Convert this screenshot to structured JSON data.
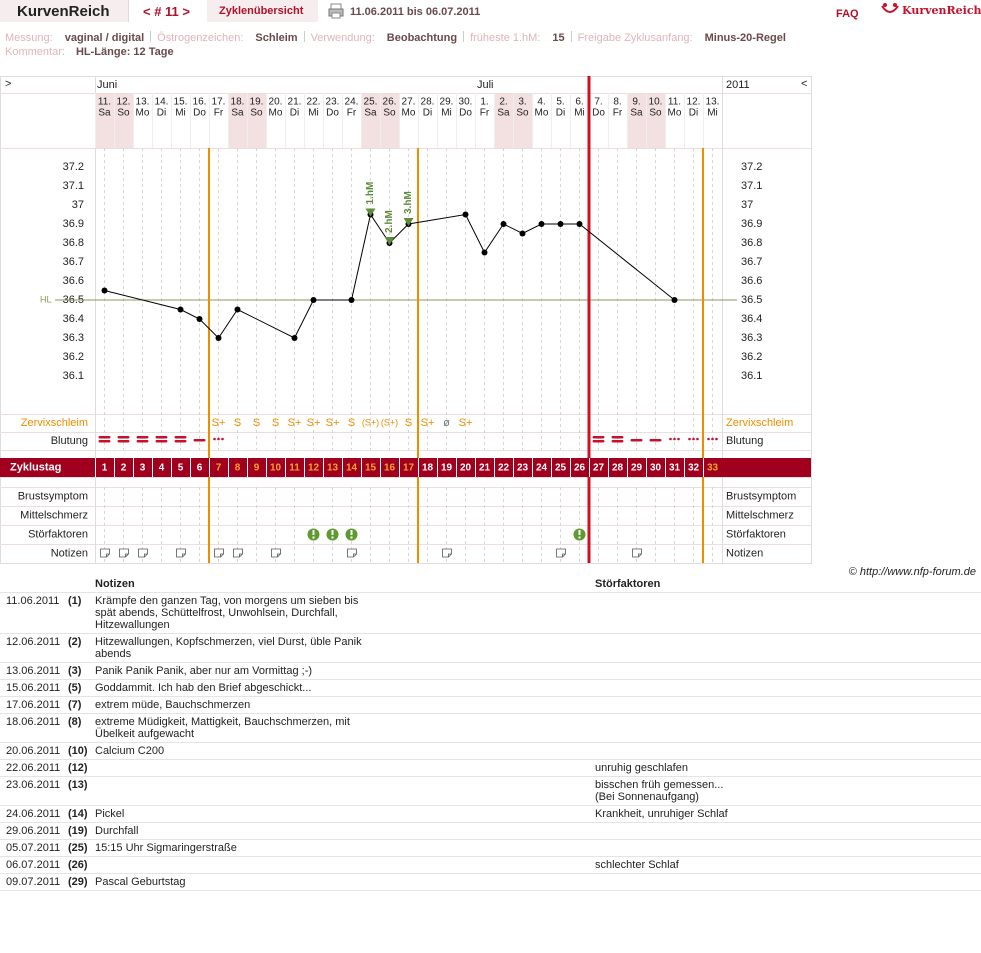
{
  "header": {
    "logo": "KurvenReich",
    "cycle": "< # 11 >",
    "tab": "Zyklenübersicht",
    "range": "11.06.2011 bis 06.07.2011",
    "faq": "FAQ",
    "brand": "KurvenReich"
  },
  "info": [
    {
      "label": "Messung:",
      "value": "vaginal / digital"
    },
    {
      "label": "Östrogenzeichen:",
      "value": "Schleim"
    },
    {
      "label": "Verwendung:",
      "value": "Beobachtung"
    },
    {
      "label": "früheste 1.hM:",
      "value": "15"
    },
    {
      "label": "Freigabe Zyklusanfang:",
      "value": "Minus-20-Regel"
    }
  ],
  "comment": {
    "label": "Kommentar:",
    "value": "HL-Länge: 12 Tage"
  },
  "chart": {
    "nav_left": ">",
    "nav_right": "<",
    "year": "2011",
    "months": [
      {
        "name": "Juni",
        "day": 1
      },
      {
        "name": "Juli",
        "day": 21
      }
    ],
    "dates": [
      "11.",
      "12.",
      "13.",
      "14.",
      "15.",
      "16.",
      "17.",
      "18.",
      "19.",
      "20.",
      "21.",
      "22.",
      "23.",
      "24.",
      "25.",
      "26.",
      "27.",
      "28.",
      "29.",
      "30.",
      "1.",
      "2.",
      "3.",
      "4.",
      "5.",
      "6.",
      "7.",
      "8.",
      "9.",
      "10.",
      "11.",
      "12.",
      "13."
    ],
    "weekdays": [
      "Sa",
      "So",
      "Mo",
      "Di",
      "Mi",
      "Do",
      "Fr",
      "Sa",
      "So",
      "Mo",
      "Di",
      "Mi",
      "Do",
      "Fr",
      "Sa",
      "So",
      "Mo",
      "Di",
      "Mi",
      "Do",
      "Fr",
      "Sa",
      "So",
      "Mo",
      "Di",
      "Mi",
      "Do",
      "Fr",
      "Sa",
      "So",
      "Mo",
      "Di",
      "Mi"
    ],
    "temperature": {
      "type": "line",
      "x": [
        1,
        5,
        6,
        7,
        8,
        11,
        12,
        14,
        15,
        16,
        17,
        20,
        21,
        22,
        23,
        24,
        25,
        26,
        31
      ],
      "values": [
        36.55,
        36.45,
        36.4,
        36.3,
        36.45,
        36.3,
        36.5,
        36.5,
        36.95,
        36.8,
        36.9,
        36.95,
        36.75,
        36.9,
        36.85,
        36.9,
        36.9,
        36.9,
        36.5
      ],
      "ylim": [
        35.9,
        37.3
      ],
      "yticks": [
        36.1,
        36.2,
        36.3,
        36.4,
        36.5,
        36.6,
        36.7,
        36.8,
        36.9,
        37,
        37.1,
        37.2
      ],
      "hl": 36.5,
      "hl_label": "HL",
      "color": "#000000",
      "hl_color": "#8a9a5b"
    },
    "hm": [
      {
        "day": 15,
        "label": "1.hM"
      },
      {
        "day": 16,
        "label": "2.hM"
      },
      {
        "day": 17,
        "label": "3.hM"
      }
    ],
    "zervix_label": "Zervixschleim",
    "zervix": [
      null,
      null,
      null,
      null,
      null,
      null,
      "S+",
      "S",
      "S",
      "S",
      "S+",
      "S+",
      "S+",
      "S",
      "(S+)",
      "(S+)",
      "S",
      "S+",
      "ø",
      "S+",
      null,
      null,
      null,
      null,
      null,
      null,
      null,
      null,
      null,
      null,
      null,
      null,
      null
    ],
    "row_labels": {
      "blutung": "Blutung",
      "zyklustag": "Zyklustag",
      "brust": "Brustsymptom",
      "mittel": "Mittelschmerz",
      "stoer": "Störfaktoren",
      "notizen": "Notizen"
    },
    "cycle_days": [
      "1",
      "2",
      "3",
      "4",
      "5",
      "6",
      "7",
      "8",
      "9",
      "10",
      "11",
      "12",
      "13",
      "14",
      "15",
      "16",
      "17",
      "18",
      "19",
      "20",
      "21",
      "22",
      "23",
      "24",
      "25",
      "26",
      "27",
      "28",
      "29",
      "30",
      "31",
      "32",
      "33"
    ]
  },
  "copyright": "© http://www.nfp-forum.de",
  "notes": {
    "headers": [
      "Notizen",
      "Störfaktoren"
    ],
    "rows": [
      {
        "date": "11.06.2011",
        "day": "(1)",
        "note": "Krämpfe den ganzen Tag, von morgens um sieben bis spät abends, Schüttelfrost, Unwohlsein, Durchfall, Hitzewallungen"
      },
      {
        "date": "12.06.2011",
        "day": "(2)",
        "note": "Hitzewallungen, Kopfschmerzen, viel Durst, üble Panik abends"
      },
      {
        "date": "13.06.2011",
        "day": "(3)",
        "note": "Panik Panik Panik, aber nur am Vormittag ;-)"
      },
      {
        "date": "15.06.2011",
        "day": "(5)",
        "note": "Goddammit. Ich hab den Brief abgeschickt..."
      },
      {
        "date": "17.06.2011",
        "day": "(7)",
        "note": "extrem müde, Bauchschmerzen"
      },
      {
        "date": "18.06.2011",
        "day": "(8)",
        "note": "extreme Müdigkeit, Mattigkeit, Bauchschmerzen, mit Übelkeit aufgewacht"
      },
      {
        "date": "20.06.2011",
        "day": "(10)",
        "note": "Calcium C200"
      },
      {
        "date": "22.06.2011",
        "day": "(12)",
        "stoer": "unruhig geschlafen"
      },
      {
        "date": "23.06.2011",
        "day": "(13)",
        "stoer": "bisschen früh gemessen...\n(Bei Sonnenaufgang)"
      },
      {
        "date": "24.06.2011",
        "day": "(14)",
        "note": "Pickel",
        "stoer": "Krankheit, unruhiger Schlaf"
      },
      {
        "date": "29.06.2011",
        "day": "(19)",
        "note": "Durchfall"
      },
      {
        "date": "05.07.2011",
        "day": "(25)",
        "note": "15:15 Uhr Sigmaringerstraße"
      },
      {
        "date": "06.07.2011",
        "day": "(26)",
        "stoer": "schlechter Schlaf"
      },
      {
        "date": "09.07.2011",
        "day": "(29)",
        "note": "Pascal Geburtstag"
      }
    ]
  }
}
